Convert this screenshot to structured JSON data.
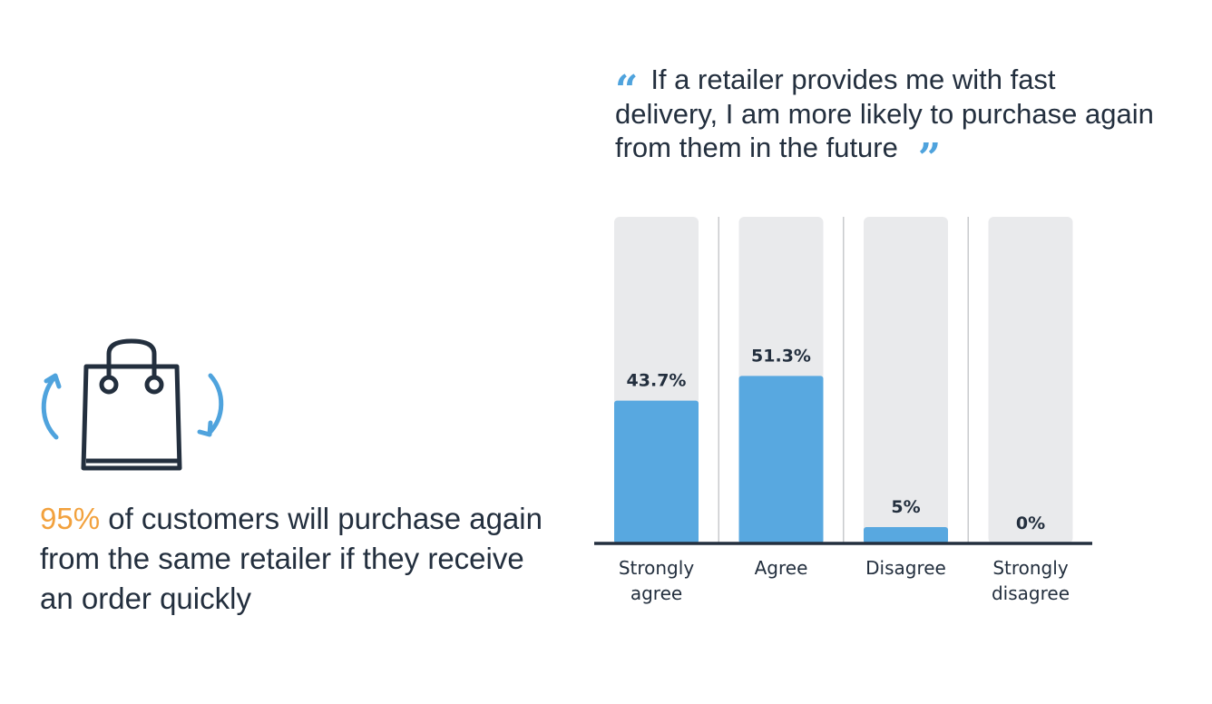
{
  "quote": {
    "text": "If a retailer provides me with fast delivery, I am more likely to purchase again from them in the future"
  },
  "stat": {
    "highlight": "95%",
    "text": " of customers will purchase again from the same retailer if they receive an order quickly"
  },
  "icons": {
    "bag": "shopping-bag-icon",
    "arrows": "circular-arrows-icon"
  },
  "colors": {
    "bar": "#58a8e0",
    "track": "#e9eaec",
    "highlight": "#f2a13d",
    "text": "#232f3e",
    "quote_mark": "#4fa3dd",
    "axis": "#232f3e"
  },
  "chart_data": {
    "type": "bar",
    "categories": [
      [
        "Strongly",
        "agree"
      ],
      [
        "Agree"
      ],
      [
        "Disagree"
      ],
      [
        "Strongly",
        "disagree"
      ]
    ],
    "values": [
      43.7,
      51.3,
      5,
      0
    ],
    "value_labels": [
      "43.7%",
      "51.3%",
      "5%",
      "0%"
    ],
    "ylim": [
      0,
      100
    ],
    "grid": false,
    "legend": "none"
  }
}
